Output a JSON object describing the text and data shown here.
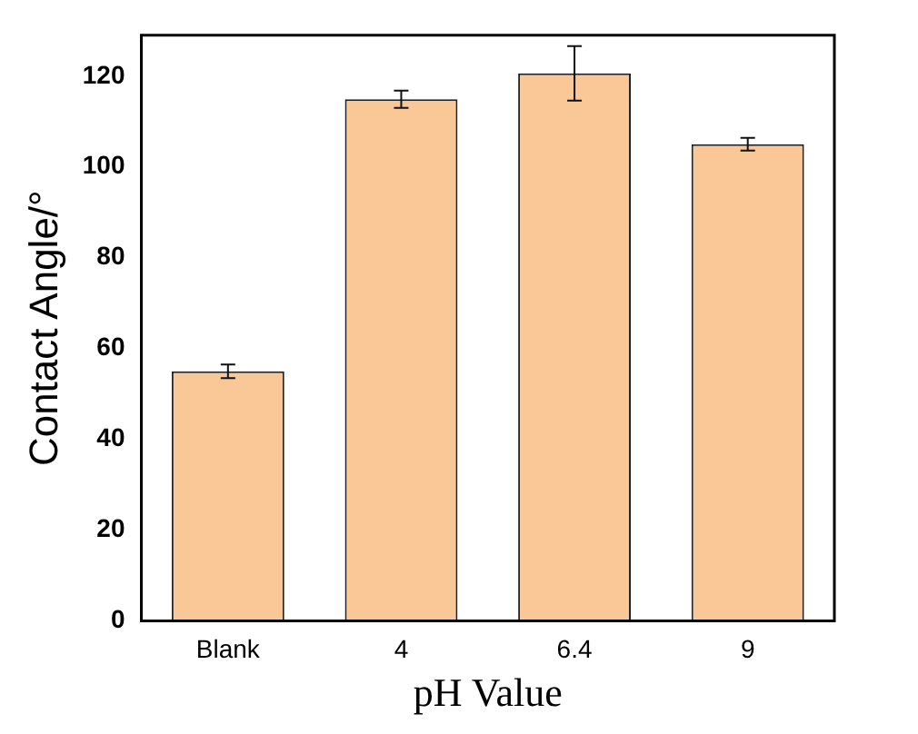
{
  "chart_data": {
    "type": "bar",
    "xlabel": "pH Value",
    "ylabel": "Contact Angle/°",
    "categories": [
      "Blank",
      "4",
      "6.4",
      "9"
    ],
    "series": [
      {
        "color": "#f9c896",
        "values": [
          55,
          114.9,
          120.6,
          105
        ],
        "errors": [
          1.5,
          1.9,
          6,
          1.4
        ]
      }
    ],
    "ylim": [
      0,
      129
    ],
    "yticks": [
      0,
      20,
      40,
      60,
      80,
      100,
      120
    ],
    "grid": false,
    "legend": false
  }
}
